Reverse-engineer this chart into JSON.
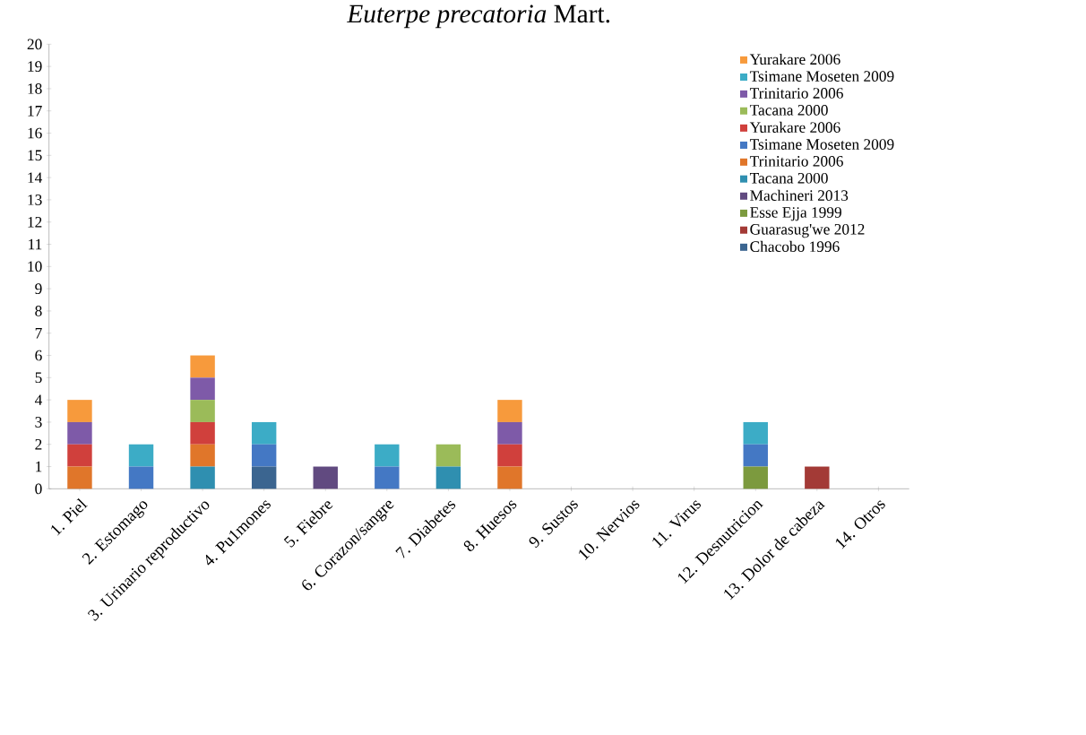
{
  "chart_data": {
    "type": "bar",
    "title": "*Euterpe precatoria* Mart.",
    "stacked": true,
    "categories": [
      "1. Piel",
      "2. Estomago",
      "3. Urinario reproductivo",
      "4. Pu1mones",
      "5. Fiebre",
      "6. Corazon/sangre",
      "7. Diabetes",
      "8. Huesos",
      "9. Sustos",
      "10. Nervios",
      "11. Virus",
      "12. Desnutricion",
      "13. Dolor de cabeza",
      "14. Otros"
    ],
    "series": [
      {
        "name": "Chacobo 1996",
        "color": "#3b6590",
        "values": [
          0,
          0,
          0,
          1,
          0,
          0,
          0,
          0,
          0,
          0,
          0,
          0,
          0,
          0
        ]
      },
      {
        "name": "Guarasug'we 2012",
        "color": "#a33a36",
        "values": [
          0,
          0,
          0,
          0,
          0,
          0,
          0,
          0,
          0,
          0,
          0,
          0,
          1,
          0
        ]
      },
      {
        "name": "Esse Ejja 1999",
        "color": "#7c9a3e",
        "values": [
          0,
          0,
          0,
          0,
          0,
          0,
          0,
          0,
          0,
          0,
          0,
          1,
          0,
          0
        ]
      },
      {
        "name": "Machineri 2013",
        "color": "#614a80",
        "values": [
          0,
          0,
          0,
          0,
          1,
          0,
          0,
          0,
          0,
          0,
          0,
          0,
          0,
          0
        ]
      },
      {
        "name": "Tacana 2000",
        "color": "#2f8fb0",
        "values": [
          0,
          0,
          1,
          0,
          0,
          0,
          1,
          0,
          0,
          0,
          0,
          0,
          0,
          0
        ]
      },
      {
        "name": "Trinitario 2006",
        "color": "#e0762a",
        "values": [
          1,
          0,
          1,
          0,
          0,
          0,
          0,
          1,
          0,
          0,
          0,
          0,
          0,
          0
        ]
      },
      {
        "name": "Tsimane Moseten 2009",
        "color": "#4478c4",
        "values": [
          0,
          1,
          0,
          1,
          0,
          1,
          0,
          0,
          0,
          0,
          0,
          1,
          0,
          0
        ]
      },
      {
        "name": "Yurakare 2006",
        "color": "#d0403c",
        "values": [
          1,
          0,
          1,
          0,
          0,
          0,
          0,
          1,
          0,
          0,
          0,
          0,
          0,
          0
        ]
      },
      {
        "name": "Tacana 2000",
        "color": "#9bbb59",
        "values": [
          0,
          0,
          1,
          0,
          0,
          0,
          1,
          0,
          0,
          0,
          0,
          0,
          0,
          0
        ]
      },
      {
        "name": "Trinitario 2006",
        "color": "#7e5aa8",
        "values": [
          1,
          0,
          1,
          0,
          0,
          0,
          0,
          1,
          0,
          0,
          0,
          0,
          0,
          0
        ]
      },
      {
        "name": "Tsimane Moseten 2009",
        "color": "#3cacc6",
        "values": [
          0,
          1,
          0,
          1,
          0,
          1,
          0,
          0,
          0,
          0,
          0,
          1,
          0,
          0
        ]
      },
      {
        "name": "Yurakare 2006",
        "color": "#f79a3c",
        "values": [
          1,
          0,
          1,
          0,
          0,
          0,
          0,
          1,
          0,
          0,
          0,
          0,
          0,
          0
        ]
      }
    ],
    "ylim": [
      0,
      20
    ],
    "yticks": [
      0,
      1,
      2,
      3,
      4,
      5,
      6,
      7,
      8,
      9,
      10,
      11,
      12,
      13,
      14,
      15,
      16,
      17,
      18,
      19,
      20
    ],
    "legend": "top right",
    "grid": false
  }
}
